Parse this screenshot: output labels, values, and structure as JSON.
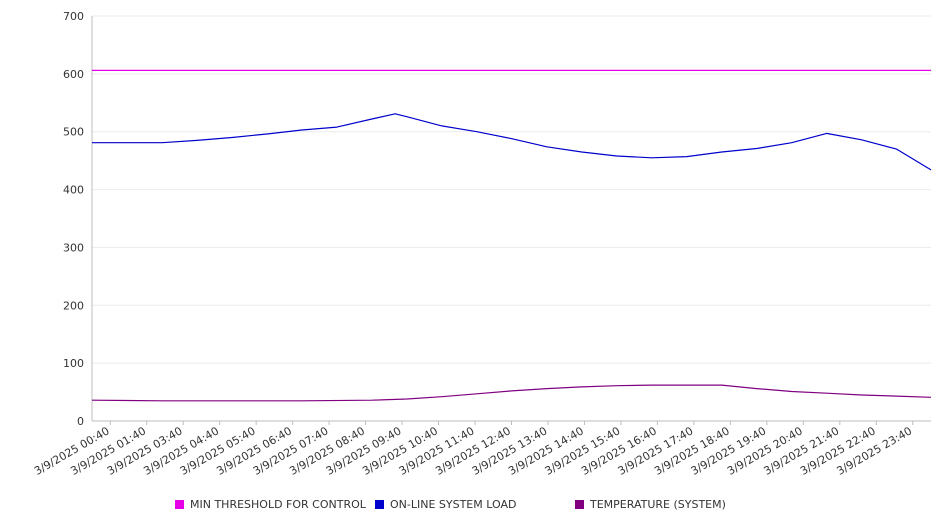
{
  "chart_data": {
    "type": "line",
    "title": "",
    "xlabel": "",
    "ylabel": "",
    "ylim": [
      0,
      700
    ],
    "y_ticks": [
      0,
      100,
      200,
      300,
      400,
      500,
      600,
      700
    ],
    "grid": true,
    "legend_position": "bottom",
    "x_range": [
      "3/9/2025 00:00",
      "3/9/2025 23:59"
    ],
    "x_tick_labels": [
      "3/9/2025 00:40",
      "3/9/2025 01:40",
      "3/9/2025 03:40",
      "3/9/2025 04:40",
      "3/9/2025 05:40",
      "3/9/2025 06:40",
      "3/9/2025 07:40",
      "3/9/2025 08:40",
      "3/9/2025 09:40",
      "3/9/2025 10:40",
      "3/9/2025 11:40",
      "3/9/2025 12:40",
      "3/9/2025 13:40",
      "3/9/2025 14:40",
      "3/9/2025 15:40",
      "3/9/2025 16:40",
      "3/9/2025 17:40",
      "3/9/2025 18:40",
      "3/9/2025 19:40",
      "3/9/2025 20:40",
      "3/9/2025 21:40",
      "3/9/2025 22:40",
      "3/9/2025 23:40"
    ],
    "series": [
      {
        "name": "MIN THRESHOLD FOR CONTROL",
        "color": "#e600e6",
        "x": [
          "3/9/2025 00:00",
          "3/9/2025 23:59"
        ],
        "values": [
          606,
          606
        ]
      },
      {
        "name": "ON-LINE SYSTEM LOAD",
        "color": "#0000cc",
        "x": [
          "3/9/2025 00:00",
          "3/9/2025 01:00",
          "3/9/2025 02:00",
          "3/9/2025 03:00",
          "3/9/2025 04:00",
          "3/9/2025 05:00",
          "3/9/2025 06:00",
          "3/9/2025 07:00",
          "3/9/2025 08:00",
          "3/9/2025 08:40",
          "3/9/2025 09:00",
          "3/9/2025 10:00",
          "3/9/2025 11:00",
          "3/9/2025 12:00",
          "3/9/2025 13:00",
          "3/9/2025 14:00",
          "3/9/2025 15:00",
          "3/9/2025 16:00",
          "3/9/2025 17:00",
          "3/9/2025 18:00",
          "3/9/2025 19:00",
          "3/9/2025 20:00",
          "3/9/2025 21:00",
          "3/9/2025 22:00",
          "3/9/2025 23:00",
          "3/9/2025 23:59"
        ],
        "values": [
          481,
          481,
          481,
          485,
          490,
          496,
          503,
          508,
          522,
          531,
          526,
          510,
          500,
          488,
          474,
          465,
          458,
          455,
          457,
          465,
          471,
          481,
          497,
          486,
          470,
          434
        ]
      },
      {
        "name": "TEMPERATURE (SYSTEM)",
        "color": "#800080",
        "x": [
          "3/9/2025 00:00",
          "3/9/2025 02:00",
          "3/9/2025 04:00",
          "3/9/2025 06:00",
          "3/9/2025 08:00",
          "3/9/2025 09:00",
          "3/9/2025 10:00",
          "3/9/2025 11:00",
          "3/9/2025 12:00",
          "3/9/2025 13:00",
          "3/9/2025 14:00",
          "3/9/2025 15:00",
          "3/9/2025 16:00",
          "3/9/2025 17:00",
          "3/9/2025 18:00",
          "3/9/2025 19:00",
          "3/9/2025 20:00",
          "3/9/2025 21:00",
          "3/9/2025 22:00",
          "3/9/2025 23:00",
          "3/9/2025 23:59"
        ],
        "values": [
          36,
          35,
          35,
          35,
          36,
          38,
          42,
          47,
          52,
          56,
          59,
          61,
          62,
          62,
          62,
          56,
          51,
          48,
          45,
          43,
          41
        ]
      }
    ]
  }
}
